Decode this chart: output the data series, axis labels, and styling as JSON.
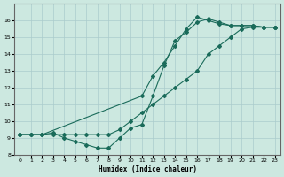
{
  "xlabel": "Humidex (Indice chaleur)",
  "bg_color": "#cce8e0",
  "grid_color": "#aacccc",
  "line_color": "#1a6b5a",
  "xlim": [
    -0.5,
    23.5
  ],
  "ylim": [
    8,
    17
  ],
  "xticks": [
    0,
    1,
    2,
    3,
    4,
    5,
    6,
    7,
    8,
    9,
    10,
    11,
    12,
    13,
    14,
    15,
    16,
    17,
    18,
    19,
    20,
    21,
    22,
    23
  ],
  "yticks": [
    8,
    9,
    10,
    11,
    12,
    13,
    14,
    15,
    16
  ],
  "series1_x": [
    0,
    1,
    2,
    3,
    4,
    5,
    6,
    7,
    8,
    9,
    10,
    11,
    12,
    13,
    14,
    15,
    16,
    17,
    18,
    19,
    20,
    21,
    22,
    23
  ],
  "series1_y": [
    9.2,
    9.2,
    9.2,
    9.2,
    9.2,
    9.2,
    9.2,
    9.2,
    9.2,
    9.5,
    10.0,
    10.5,
    11.0,
    11.5,
    12.0,
    12.5,
    13.0,
    14.0,
    14.5,
    15.0,
    15.5,
    15.6,
    15.6,
    15.6
  ],
  "series2_x": [
    0,
    1,
    2,
    3,
    4,
    5,
    6,
    7,
    8,
    9,
    10,
    11,
    12,
    13,
    14,
    15,
    16,
    17,
    18,
    19,
    20,
    21,
    22,
    23
  ],
  "series2_y": [
    9.2,
    9.2,
    9.2,
    9.3,
    9.0,
    8.8,
    8.6,
    8.4,
    8.4,
    9.0,
    9.6,
    9.8,
    11.5,
    13.3,
    14.8,
    15.3,
    15.9,
    16.1,
    15.9,
    15.7,
    15.7,
    15.7,
    15.6,
    15.6
  ],
  "series3_x": [
    0,
    2,
    11,
    12,
    13,
    14,
    15,
    16,
    17,
    18,
    19,
    20,
    21,
    22,
    23
  ],
  "series3_y": [
    9.2,
    9.2,
    11.5,
    12.7,
    13.5,
    14.5,
    15.5,
    16.2,
    16.0,
    15.8,
    15.7,
    15.7,
    15.7,
    15.6,
    15.6
  ]
}
